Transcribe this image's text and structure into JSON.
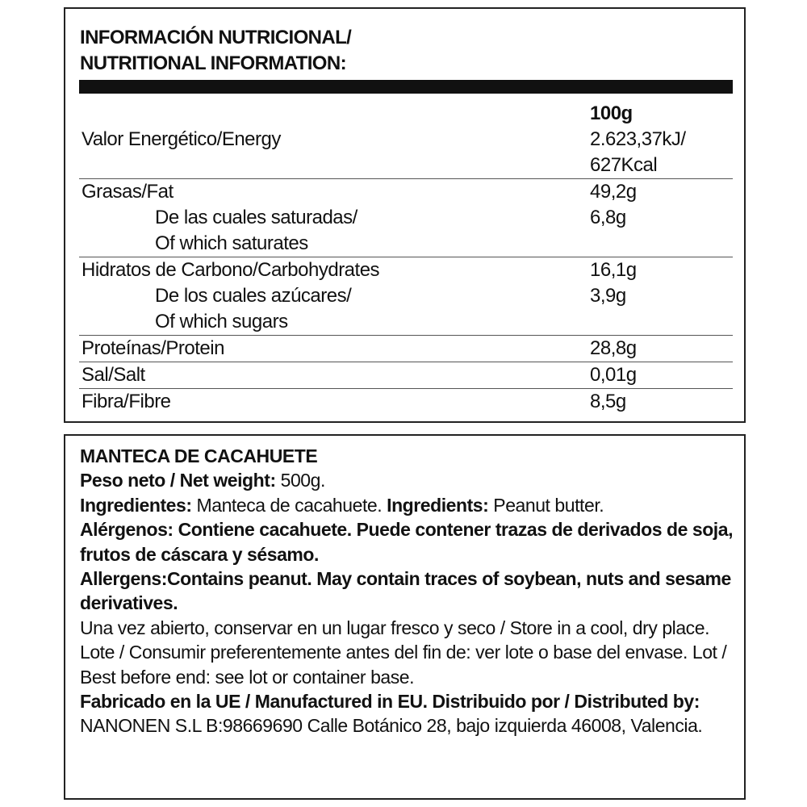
{
  "nutrition": {
    "title_line1": "INFORMACIÓN NUTRICIONAL/",
    "title_line2": "NUTRITIONAL INFORMATION:",
    "column_header": "100g",
    "rows": [
      {
        "label": "Valor Energético/Energy",
        "value1": "2.623,37kJ/",
        "value2": "627Kcal"
      },
      {
        "label": "Grasas/Fat",
        "value": "49,2g",
        "sub_label1": "De las cuales saturadas/",
        "sub_label2": "Of which saturates",
        "sub_value": "6,8g"
      },
      {
        "label": "Hidratos de Carbono/Carbohydrates",
        "value": "16,1g",
        "sub_label1": "De los cuales azúcares/",
        "sub_label2": "Of which sugars",
        "sub_value": "3,9g"
      },
      {
        "label": "Proteínas/Protein",
        "value": "28,8g"
      },
      {
        "label": "Sal/Salt",
        "value": "0,01g"
      },
      {
        "label": "Fibra/Fibre",
        "value": "8,5g"
      }
    ]
  },
  "info": {
    "product_name": "MANTECA DE CACAHUETE",
    "net_weight_label": "Peso neto / Net weight:",
    "net_weight_value": " 500g.",
    "ingredientes_label": "Ingredientes:",
    "ingredientes_value": " Manteca de cacahuete. ",
    "ingredients_label": "Ingredients:",
    "ingredients_value": " Peanut butter.",
    "alergenos": "Alérgenos: Contiene cacahuete. Puede contener trazas de derivados de soja, frutos de cáscara y sésamo.",
    "allergens": "Allergens:Contains peanut. May contain traces of soybean, nuts and sesame derivatives.",
    "storage": "Una vez abierto, conservar en un lugar fresco y seco / Store in a cool, dry place.",
    "lot": "Lote / Consumir preferentemente antes del fin de: ver lote o base del envase. Lot / Best before end: see lot or container base.",
    "manufactured": "Fabricado en la UE / Manufactured in EU. Distribuido por / Distributed by:",
    "distributor": " NANONEN S.L B:98669690 Calle Botánico 28, bajo izquierda 46008, Valencia."
  }
}
